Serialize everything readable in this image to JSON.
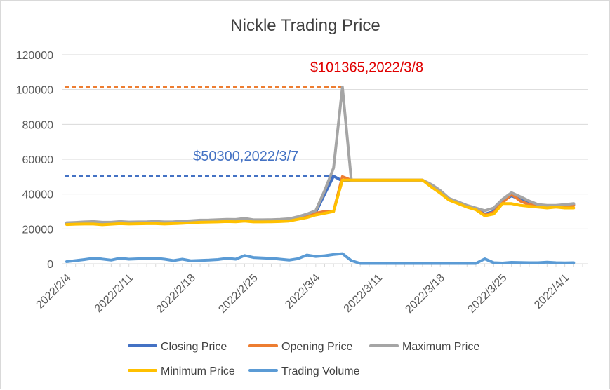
{
  "chart_data": {
    "type": "line",
    "title": "Nickle Trading Price",
    "ylim": [
      0,
      120000
    ],
    "y_ticks": [
      0,
      20000,
      40000,
      60000,
      80000,
      100000,
      120000
    ],
    "y_tick_labels": [
      "0",
      "20000",
      "40000",
      "60000",
      "80000",
      "100000",
      "120000"
    ],
    "x_range_days": [
      0,
      58
    ],
    "x_ticks": [
      {
        "label": "2022/2/4",
        "day": 0
      },
      {
        "label": "2022/2/11",
        "day": 7
      },
      {
        "label": "2022/2/18",
        "day": 14
      },
      {
        "label": "2022/2/25",
        "day": 21
      },
      {
        "label": "2022/3/4",
        "day": 28
      },
      {
        "label": "2022/3/11",
        "day": 35
      },
      {
        "label": "2022/3/18",
        "day": 42
      },
      {
        "label": "2022/3/25",
        "day": 49
      },
      {
        "label": "2022/4/1",
        "day": 56
      }
    ],
    "series": [
      {
        "name": "Closing Price",
        "color": "#4472c4",
        "points": [
          [
            0,
            23000
          ],
          [
            1,
            23200
          ],
          [
            2,
            23500
          ],
          [
            3,
            23400
          ],
          [
            4,
            23000
          ],
          [
            5,
            23200
          ],
          [
            6,
            23600
          ],
          [
            7,
            23300
          ],
          [
            8,
            23400
          ],
          [
            9,
            23500
          ],
          [
            10,
            23600
          ],
          [
            11,
            23300
          ],
          [
            12,
            23500
          ],
          [
            13,
            23700
          ],
          [
            14,
            24000
          ],
          [
            15,
            24200
          ],
          [
            16,
            24300
          ],
          [
            17,
            24500
          ],
          [
            18,
            24700
          ],
          [
            19,
            24600
          ],
          [
            20,
            25000
          ],
          [
            21,
            24500
          ],
          [
            22,
            24500
          ],
          [
            23,
            24600
          ],
          [
            24,
            24800
          ],
          [
            25,
            25000
          ],
          [
            26,
            26000
          ],
          [
            27,
            27500
          ],
          [
            28,
            29500
          ],
          [
            29,
            40000
          ],
          [
            30,
            50300
          ],
          [
            31,
            47500
          ],
          [
            32,
            48000
          ],
          [
            33,
            48000
          ],
          [
            34,
            48000
          ],
          [
            35,
            48000
          ],
          [
            36,
            48000
          ],
          [
            37,
            48000
          ],
          [
            38,
            48000
          ],
          [
            39,
            48000
          ],
          [
            40,
            48000
          ],
          [
            41,
            45000
          ],
          [
            42,
            41000
          ],
          [
            43,
            37000
          ],
          [
            44,
            35000
          ],
          [
            45,
            33000
          ],
          [
            46,
            31500
          ],
          [
            47,
            28500
          ],
          [
            48,
            30000
          ],
          [
            49,
            36000
          ],
          [
            50,
            39000
          ],
          [
            51,
            37000
          ],
          [
            52,
            35000
          ],
          [
            53,
            33500
          ],
          [
            54,
            33000
          ],
          [
            55,
            33000
          ],
          [
            56,
            33500
          ],
          [
            57,
            34000
          ]
        ]
      },
      {
        "name": "Opening Price",
        "color": "#ed7d31",
        "points": [
          [
            0,
            22800
          ],
          [
            1,
            23000
          ],
          [
            2,
            23300
          ],
          [
            3,
            23300
          ],
          [
            4,
            22900
          ],
          [
            5,
            23100
          ],
          [
            6,
            23500
          ],
          [
            7,
            23200
          ],
          [
            8,
            23300
          ],
          [
            9,
            23400
          ],
          [
            10,
            23500
          ],
          [
            11,
            23200
          ],
          [
            12,
            23400
          ],
          [
            13,
            23600
          ],
          [
            14,
            23900
          ],
          [
            15,
            24100
          ],
          [
            16,
            24200
          ],
          [
            17,
            24400
          ],
          [
            18,
            24600
          ],
          [
            19,
            24500
          ],
          [
            20,
            24800
          ],
          [
            21,
            24400
          ],
          [
            22,
            24400
          ],
          [
            23,
            24500
          ],
          [
            24,
            24700
          ],
          [
            25,
            24900
          ],
          [
            26,
            25800
          ],
          [
            27,
            27200
          ],
          [
            28,
            29000
          ],
          [
            29,
            30000
          ],
          [
            30,
            30000
          ],
          [
            31,
            50000
          ],
          [
            32,
            48000
          ],
          [
            33,
            48000
          ],
          [
            34,
            48000
          ],
          [
            35,
            48000
          ],
          [
            36,
            48000
          ],
          [
            37,
            48000
          ],
          [
            38,
            48000
          ],
          [
            39,
            48000
          ],
          [
            40,
            48000
          ],
          [
            41,
            45000
          ],
          [
            42,
            41000
          ],
          [
            43,
            37000
          ],
          [
            44,
            35000
          ],
          [
            45,
            33000
          ],
          [
            46,
            31500
          ],
          [
            47,
            28000
          ],
          [
            48,
            29500
          ],
          [
            49,
            35000
          ],
          [
            50,
            40000
          ],
          [
            51,
            36000
          ],
          [
            52,
            34000
          ],
          [
            53,
            33000
          ],
          [
            54,
            32500
          ],
          [
            55,
            33000
          ],
          [
            56,
            33000
          ],
          [
            57,
            33500
          ]
        ]
      },
      {
        "name": "Maximum Price",
        "color": "#a5a5a5",
        "points": [
          [
            0,
            23500
          ],
          [
            1,
            23700
          ],
          [
            2,
            24000
          ],
          [
            3,
            24200
          ],
          [
            4,
            23800
          ],
          [
            5,
            23800
          ],
          [
            6,
            24200
          ],
          [
            7,
            23900
          ],
          [
            8,
            24000
          ],
          [
            9,
            24100
          ],
          [
            10,
            24300
          ],
          [
            11,
            24000
          ],
          [
            12,
            24100
          ],
          [
            13,
            24400
          ],
          [
            14,
            24700
          ],
          [
            15,
            25000
          ],
          [
            16,
            25100
          ],
          [
            17,
            25300
          ],
          [
            18,
            25500
          ],
          [
            19,
            25400
          ],
          [
            20,
            26000
          ],
          [
            21,
            25200
          ],
          [
            22,
            25200
          ],
          [
            23,
            25300
          ],
          [
            24,
            25500
          ],
          [
            25,
            25800
          ],
          [
            26,
            27000
          ],
          [
            27,
            28500
          ],
          [
            28,
            30500
          ],
          [
            29,
            42000
          ],
          [
            30,
            55000
          ],
          [
            31,
            101365
          ],
          [
            32,
            48000
          ],
          [
            33,
            48000
          ],
          [
            34,
            48000
          ],
          [
            35,
            48000
          ],
          [
            36,
            48000
          ],
          [
            37,
            48000
          ],
          [
            38,
            48000
          ],
          [
            39,
            48000
          ],
          [
            40,
            48000
          ],
          [
            41,
            45500
          ],
          [
            42,
            42000
          ],
          [
            43,
            37500
          ],
          [
            44,
            35500
          ],
          [
            45,
            33500
          ],
          [
            46,
            32000
          ],
          [
            47,
            30500
          ],
          [
            48,
            32000
          ],
          [
            49,
            37000
          ],
          [
            50,
            40800
          ],
          [
            51,
            38500
          ],
          [
            52,
            36000
          ],
          [
            53,
            34000
          ],
          [
            54,
            33500
          ],
          [
            55,
            33500
          ],
          [
            56,
            34000
          ],
          [
            57,
            34500
          ]
        ]
      },
      {
        "name": "Minimum Price",
        "color": "#ffc000",
        "points": [
          [
            0,
            22500
          ],
          [
            1,
            22700
          ],
          [
            2,
            22800
          ],
          [
            3,
            22800
          ],
          [
            4,
            22400
          ],
          [
            5,
            22700
          ],
          [
            6,
            23000
          ],
          [
            7,
            22800
          ],
          [
            8,
            22900
          ],
          [
            9,
            23000
          ],
          [
            10,
            23000
          ],
          [
            11,
            22800
          ],
          [
            12,
            23000
          ],
          [
            13,
            23200
          ],
          [
            14,
            23500
          ],
          [
            15,
            23800
          ],
          [
            16,
            23900
          ],
          [
            17,
            24000
          ],
          [
            18,
            24200
          ],
          [
            19,
            24100
          ],
          [
            20,
            24500
          ],
          [
            21,
            24000
          ],
          [
            22,
            24000
          ],
          [
            23,
            24100
          ],
          [
            24,
            24200
          ],
          [
            25,
            24500
          ],
          [
            26,
            25500
          ],
          [
            27,
            26500
          ],
          [
            28,
            28000
          ],
          [
            29,
            29000
          ],
          [
            30,
            30000
          ],
          [
            31,
            48000
          ],
          [
            32,
            48000
          ],
          [
            33,
            48000
          ],
          [
            34,
            48000
          ],
          [
            35,
            48000
          ],
          [
            36,
            48000
          ],
          [
            37,
            48000
          ],
          [
            38,
            48000
          ],
          [
            39,
            48000
          ],
          [
            40,
            48000
          ],
          [
            41,
            44000
          ],
          [
            42,
            40500
          ],
          [
            43,
            36500
          ],
          [
            44,
            34500
          ],
          [
            45,
            32500
          ],
          [
            46,
            31000
          ],
          [
            47,
            27500
          ],
          [
            48,
            28500
          ],
          [
            49,
            34500
          ],
          [
            50,
            34500
          ],
          [
            51,
            33500
          ],
          [
            52,
            33000
          ],
          [
            53,
            32500
          ],
          [
            54,
            32000
          ],
          [
            55,
            32500
          ],
          [
            56,
            32000
          ],
          [
            57,
            32000
          ]
        ]
      },
      {
        "name": "Trading Volume",
        "color": "#5b9bd5",
        "points": [
          [
            0,
            1200
          ],
          [
            1,
            1800
          ],
          [
            2,
            2400
          ],
          [
            3,
            3200
          ],
          [
            4,
            2700
          ],
          [
            5,
            2100
          ],
          [
            6,
            3200
          ],
          [
            7,
            2600
          ],
          [
            8,
            2800
          ],
          [
            9,
            3000
          ],
          [
            10,
            3200
          ],
          [
            11,
            2600
          ],
          [
            12,
            1800
          ],
          [
            13,
            2600
          ],
          [
            14,
            1700
          ],
          [
            15,
            1900
          ],
          [
            16,
            2100
          ],
          [
            17,
            2400
          ],
          [
            18,
            3100
          ],
          [
            19,
            2600
          ],
          [
            20,
            4700
          ],
          [
            21,
            3600
          ],
          [
            22,
            3300
          ],
          [
            23,
            3100
          ],
          [
            24,
            2600
          ],
          [
            25,
            2100
          ],
          [
            26,
            2900
          ],
          [
            27,
            5000
          ],
          [
            28,
            4200
          ],
          [
            29,
            4600
          ],
          [
            30,
            5300
          ],
          [
            31,
            5800
          ],
          [
            32,
            1800
          ],
          [
            33,
            200
          ],
          [
            34,
            200
          ],
          [
            35,
            200
          ],
          [
            36,
            200
          ],
          [
            37,
            200
          ],
          [
            38,
            200
          ],
          [
            39,
            200
          ],
          [
            40,
            200
          ],
          [
            41,
            200
          ],
          [
            42,
            200
          ],
          [
            43,
            200
          ],
          [
            44,
            200
          ],
          [
            45,
            200
          ],
          [
            46,
            200
          ],
          [
            47,
            2800
          ],
          [
            48,
            600
          ],
          [
            49,
            400
          ],
          [
            50,
            800
          ],
          [
            51,
            700
          ],
          [
            52,
            600
          ],
          [
            53,
            600
          ],
          [
            54,
            900
          ],
          [
            55,
            600
          ],
          [
            56,
            500
          ],
          [
            57,
            600
          ]
        ]
      }
    ],
    "annotations": [
      {
        "text": "$101365,2022/3/8",
        "value": 101365,
        "day": 31,
        "color": "#e00000",
        "line_color": "#ed7d31"
      },
      {
        "text": "$50300,2022/3/7",
        "value": 50300,
        "day": 30,
        "color": "#4472c4",
        "line_color": "#4472c4"
      }
    ],
    "legend": {
      "position": "bottom"
    }
  }
}
